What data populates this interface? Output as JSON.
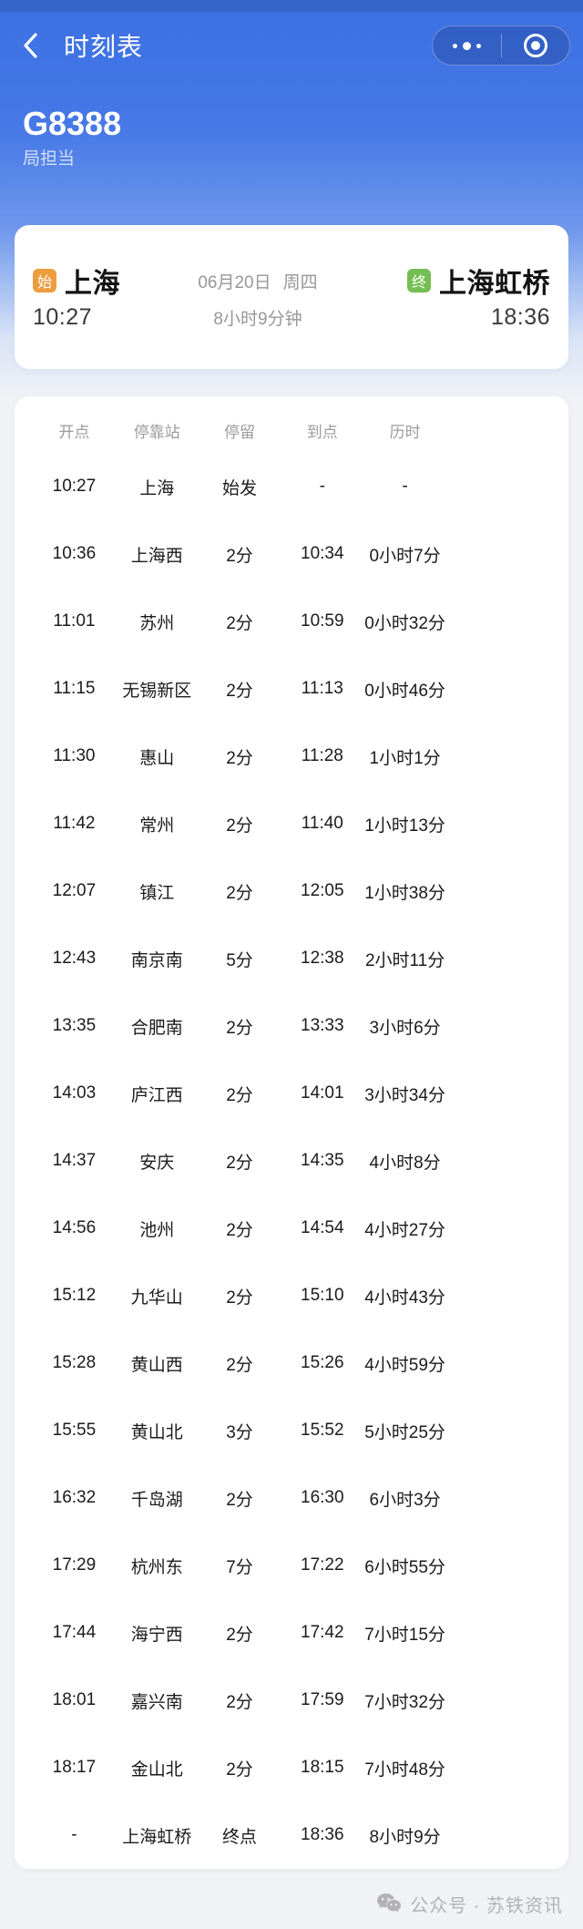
{
  "navbar": {
    "title": "时刻表"
  },
  "train": {
    "number": "G8388",
    "operator": "局担当"
  },
  "summary": {
    "origin_badge": "始",
    "origin_station": "上海",
    "origin_time": "10:27",
    "date": "06月20日",
    "weekday": "周四",
    "duration": "8小时9分钟",
    "dest_badge": "终",
    "dest_station": "上海虹桥",
    "dest_time": "18:36"
  },
  "timetable": {
    "columns": [
      "开点",
      "停靠站",
      "停留",
      "到点",
      "历时"
    ],
    "rows": [
      [
        "10:27",
        "上海",
        "始发",
        "-",
        "-"
      ],
      [
        "10:36",
        "上海西",
        "2分",
        "10:34",
        "0小时7分"
      ],
      [
        "11:01",
        "苏州",
        "2分",
        "10:59",
        "0小时32分"
      ],
      [
        "11:15",
        "无锡新区",
        "2分",
        "11:13",
        "0小时46分"
      ],
      [
        "11:30",
        "惠山",
        "2分",
        "11:28",
        "1小时1分"
      ],
      [
        "11:42",
        "常州",
        "2分",
        "11:40",
        "1小时13分"
      ],
      [
        "12:07",
        "镇江",
        "2分",
        "12:05",
        "1小时38分"
      ],
      [
        "12:43",
        "南京南",
        "5分",
        "12:38",
        "2小时11分"
      ],
      [
        "13:35",
        "合肥南",
        "2分",
        "13:33",
        "3小时6分"
      ],
      [
        "14:03",
        "庐江西",
        "2分",
        "14:01",
        "3小时34分"
      ],
      [
        "14:37",
        "安庆",
        "2分",
        "14:35",
        "4小时8分"
      ],
      [
        "14:56",
        "池州",
        "2分",
        "14:54",
        "4小时27分"
      ],
      [
        "15:12",
        "九华山",
        "2分",
        "15:10",
        "4小时43分"
      ],
      [
        "15:28",
        "黄山西",
        "2分",
        "15:26",
        "4小时59分"
      ],
      [
        "15:55",
        "黄山北",
        "3分",
        "15:52",
        "5小时25分"
      ],
      [
        "16:32",
        "千岛湖",
        "2分",
        "16:30",
        "6小时3分"
      ],
      [
        "17:29",
        "杭州东",
        "7分",
        "17:22",
        "6小时55分"
      ],
      [
        "17:44",
        "海宁西",
        "2分",
        "17:42",
        "7小时15分"
      ],
      [
        "18:01",
        "嘉兴南",
        "2分",
        "17:59",
        "7小时32分"
      ],
      [
        "18:17",
        "金山北",
        "2分",
        "18:15",
        "7小时48分"
      ],
      [
        "-",
        "上海虹桥",
        "终点",
        "18:36",
        "8小时9分"
      ]
    ]
  },
  "footer": {
    "watermark": "公众号 · 苏铁资讯"
  },
  "colors": {
    "header_blue": "#3C70E2",
    "page_bg": "#F1F2F5",
    "origin_badge": "#EE9C40",
    "dest_badge": "#74BE52"
  }
}
